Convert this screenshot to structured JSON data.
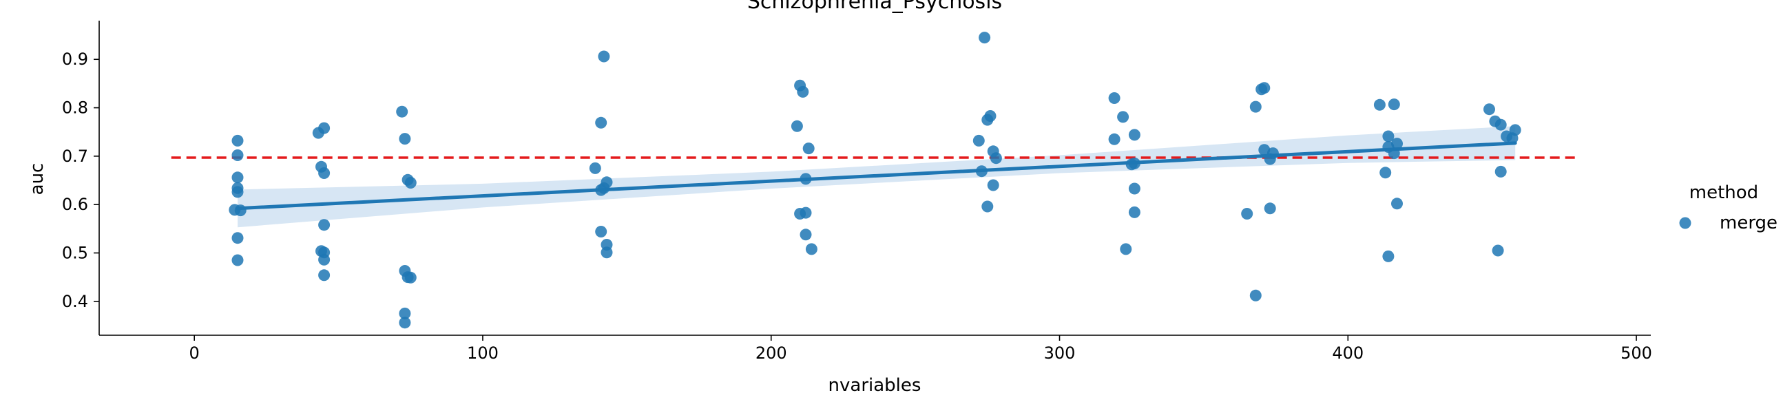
{
  "chart_data": {
    "type": "scatter",
    "title": "Schizophrenia_Psychosis",
    "xlabel": "nvariables",
    "ylabel": "auc",
    "xlim": [
      -33,
      505
    ],
    "ylim": [
      0.33,
      0.98
    ],
    "xticks": [
      0,
      100,
      200,
      300,
      400,
      500
    ],
    "xtick_labels": [
      "0",
      "100",
      "200",
      "300",
      "400",
      "500"
    ],
    "yticks": [
      0.4,
      0.5,
      0.6,
      0.7,
      0.8,
      0.9
    ],
    "ytick_labels": [
      "0.4",
      "0.5",
      "0.6",
      "0.7",
      "0.8",
      "0.9"
    ],
    "grid": false,
    "legend": {
      "title": "method",
      "entries": [
        "merge"
      ],
      "placement": "right"
    },
    "colors": {
      "points": "#1f77b4",
      "regression": "#1f77b4",
      "ci_band": "#c6dbef",
      "reference": "#e41a1c"
    },
    "reference_line": {
      "y": 0.697,
      "x_from": -8,
      "x_to": 480,
      "style": "dashed"
    },
    "regression": {
      "x_from": 15,
      "x_to": 458,
      "y_from": 0.592,
      "y_to": 0.727
    },
    "confidence_band": [
      {
        "x": 15,
        "lo": 0.553,
        "hi": 0.631
      },
      {
        "x": 100,
        "lo": 0.594,
        "hi": 0.643
      },
      {
        "x": 200,
        "lo": 0.633,
        "hi": 0.668
      },
      {
        "x": 300,
        "lo": 0.665,
        "hi": 0.702
      },
      {
        "x": 400,
        "lo": 0.686,
        "hi": 0.743
      },
      {
        "x": 458,
        "lo": 0.692,
        "hi": 0.762
      }
    ],
    "series": [
      {
        "name": "merge",
        "points": [
          {
            "x": 15,
            "y": 0.732
          },
          {
            "x": 15,
            "y": 0.702
          },
          {
            "x": 15,
            "y": 0.656
          },
          {
            "x": 15,
            "y": 0.634
          },
          {
            "x": 15,
            "y": 0.626
          },
          {
            "x": 14,
            "y": 0.589
          },
          {
            "x": 16,
            "y": 0.588
          },
          {
            "x": 15,
            "y": 0.531
          },
          {
            "x": 15,
            "y": 0.485
          },
          {
            "x": 43,
            "y": 0.748
          },
          {
            "x": 45,
            "y": 0.758
          },
          {
            "x": 44,
            "y": 0.678
          },
          {
            "x": 45,
            "y": 0.665
          },
          {
            "x": 45,
            "y": 0.558
          },
          {
            "x": 44,
            "y": 0.504
          },
          {
            "x": 45,
            "y": 0.501
          },
          {
            "x": 45,
            "y": 0.486
          },
          {
            "x": 45,
            "y": 0.454
          },
          {
            "x": 72,
            "y": 0.792
          },
          {
            "x": 73,
            "y": 0.736
          },
          {
            "x": 74,
            "y": 0.651
          },
          {
            "x": 75,
            "y": 0.645
          },
          {
            "x": 73,
            "y": 0.463
          },
          {
            "x": 74,
            "y": 0.45
          },
          {
            "x": 75,
            "y": 0.449
          },
          {
            "x": 73,
            "y": 0.375
          },
          {
            "x": 73,
            "y": 0.356
          },
          {
            "x": 142,
            "y": 0.906
          },
          {
            "x": 141,
            "y": 0.769
          },
          {
            "x": 139,
            "y": 0.675
          },
          {
            "x": 143,
            "y": 0.646
          },
          {
            "x": 142,
            "y": 0.634
          },
          {
            "x": 141,
            "y": 0.63
          },
          {
            "x": 141,
            "y": 0.544
          },
          {
            "x": 143,
            "y": 0.517
          },
          {
            "x": 143,
            "y": 0.501
          },
          {
            "x": 210,
            "y": 0.846
          },
          {
            "x": 211,
            "y": 0.833
          },
          {
            "x": 209,
            "y": 0.762
          },
          {
            "x": 213,
            "y": 0.716
          },
          {
            "x": 212,
            "y": 0.653
          },
          {
            "x": 210,
            "y": 0.581
          },
          {
            "x": 212,
            "y": 0.583
          },
          {
            "x": 212,
            "y": 0.538
          },
          {
            "x": 214,
            "y": 0.508
          },
          {
            "x": 274,
            "y": 0.945
          },
          {
            "x": 276,
            "y": 0.783
          },
          {
            "x": 275,
            "y": 0.775
          },
          {
            "x": 272,
            "y": 0.732
          },
          {
            "x": 277,
            "y": 0.71
          },
          {
            "x": 278,
            "y": 0.696
          },
          {
            "x": 273,
            "y": 0.669
          },
          {
            "x": 277,
            "y": 0.64
          },
          {
            "x": 275,
            "y": 0.596
          },
          {
            "x": 319,
            "y": 0.82
          },
          {
            "x": 322,
            "y": 0.781
          },
          {
            "x": 326,
            "y": 0.744
          },
          {
            "x": 319,
            "y": 0.735
          },
          {
            "x": 325,
            "y": 0.683
          },
          {
            "x": 326,
            "y": 0.685
          },
          {
            "x": 326,
            "y": 0.633
          },
          {
            "x": 326,
            "y": 0.584
          },
          {
            "x": 323,
            "y": 0.508
          },
          {
            "x": 370,
            "y": 0.838
          },
          {
            "x": 371,
            "y": 0.841
          },
          {
            "x": 368,
            "y": 0.802
          },
          {
            "x": 371,
            "y": 0.713
          },
          {
            "x": 374,
            "y": 0.706
          },
          {
            "x": 373,
            "y": 0.694
          },
          {
            "x": 373,
            "y": 0.592
          },
          {
            "x": 365,
            "y": 0.581
          },
          {
            "x": 368,
            "y": 0.412
          },
          {
            "x": 411,
            "y": 0.806
          },
          {
            "x": 416,
            "y": 0.807
          },
          {
            "x": 414,
            "y": 0.741
          },
          {
            "x": 417,
            "y": 0.726
          },
          {
            "x": 414,
            "y": 0.719
          },
          {
            "x": 416,
            "y": 0.706
          },
          {
            "x": 413,
            "y": 0.666
          },
          {
            "x": 417,
            "y": 0.602
          },
          {
            "x": 414,
            "y": 0.493
          },
          {
            "x": 449,
            "y": 0.797
          },
          {
            "x": 451,
            "y": 0.772
          },
          {
            "x": 453,
            "y": 0.765
          },
          {
            "x": 458,
            "y": 0.754
          },
          {
            "x": 455,
            "y": 0.741
          },
          {
            "x": 457,
            "y": 0.737
          },
          {
            "x": 453,
            "y": 0.668
          },
          {
            "x": 452,
            "y": 0.505
          }
        ]
      }
    ]
  }
}
